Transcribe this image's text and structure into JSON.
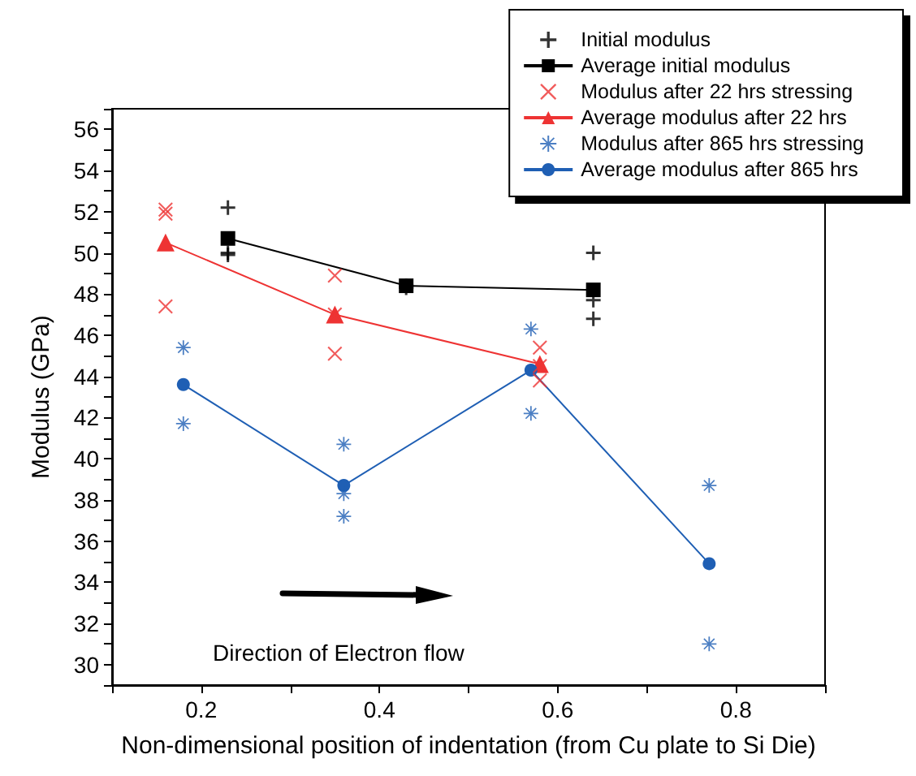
{
  "chart_data": {
    "type": "scatter",
    "xlabel": "Non-dimensional position of indentation (from Cu plate to Si Die)",
    "ylabel": "Modulus (GPa)",
    "xlim": [
      0.1,
      0.9
    ],
    "xticks": [
      {
        "value": 0.1,
        "label": null
      },
      0.2,
      {
        "value": 0.3,
        "label": null
      },
      0.4,
      {
        "value": 0.5,
        "label": null
      },
      0.6,
      {
        "value": 0.7,
        "label": null
      },
      0.8,
      {
        "value": 0.9,
        "label": null
      }
    ],
    "ylim": [
      29,
      57
    ],
    "yticks": [
      {
        "value": 29,
        "label": null
      },
      30,
      {
        "value": 31,
        "label": null
      },
      32,
      {
        "value": 33,
        "label": null
      },
      34,
      {
        "value": 35,
        "label": null
      },
      36,
      {
        "value": 37,
        "label": null
      },
      38,
      {
        "value": 39,
        "label": null
      },
      40,
      {
        "value": 41,
        "label": null
      },
      42,
      {
        "value": 43,
        "label": null
      },
      44,
      {
        "value": 45,
        "label": null
      },
      46,
      {
        "value": 47,
        "label": null
      },
      48,
      {
        "value": 49,
        "label": null
      },
      50,
      {
        "value": 51,
        "label": null
      },
      52,
      {
        "value": 53,
        "label": null
      },
      54,
      {
        "value": 55,
        "label": null
      },
      56,
      {
        "value": 57,
        "label": null
      }
    ],
    "grid": false,
    "legend": "top right",
    "line_style": "solid",
    "annotations": [
      "Direction of Electron flow"
    ],
    "series": [
      {
        "name": "Initial modulus",
        "marker": "cross",
        "color": "#000000",
        "x": [
          0.23,
          0.23,
          0.23,
          0.43,
          0.43,
          0.64,
          0.64,
          0.64
        ],
        "values": [
          52.2,
          50.0,
          49.9,
          48.4,
          48.3,
          50.0,
          47.7,
          46.8
        ]
      },
      {
        "name": "Average initial modulus",
        "type": "line",
        "marker": "square",
        "color": "#000000",
        "x": [
          0.23,
          0.43,
          0.64
        ],
        "values": [
          50.7,
          48.4,
          48.2
        ]
      },
      {
        "name": "Modulus after 22 hrs stressing",
        "marker": "x",
        "color": "#ee3333",
        "x": [
          0.16,
          0.16,
          0.16,
          0.35,
          0.35,
          0.35,
          0.58,
          0.58,
          0.58
        ],
        "values": [
          52.1,
          51.9,
          47.4,
          48.9,
          47.0,
          45.1,
          45.4,
          44.5,
          43.8
        ]
      },
      {
        "name": "Average modulus after 22 hrs",
        "type": "line",
        "marker": "triangle",
        "color": "#ee3333",
        "x": [
          0.16,
          0.35,
          0.58
        ],
        "values": [
          50.5,
          47.0,
          44.6
        ]
      },
      {
        "name": "Modulus after 865 hrs stressing",
        "marker": "asterisk",
        "color": "#1f5fb4",
        "x": [
          0.18,
          0.18,
          0.36,
          0.36,
          0.36,
          0.57,
          0.57,
          0.77,
          0.77
        ],
        "values": [
          45.4,
          41.7,
          40.7,
          38.3,
          37.2,
          46.3,
          42.2,
          38.7,
          31.0
        ]
      },
      {
        "name": "Average modulus after 865 hrs",
        "type": "line",
        "marker": "circle",
        "color": "#1f5fb4",
        "x": [
          0.18,
          0.36,
          0.57,
          0.77
        ],
        "values": [
          43.6,
          38.7,
          44.3,
          34.9
        ]
      }
    ]
  }
}
